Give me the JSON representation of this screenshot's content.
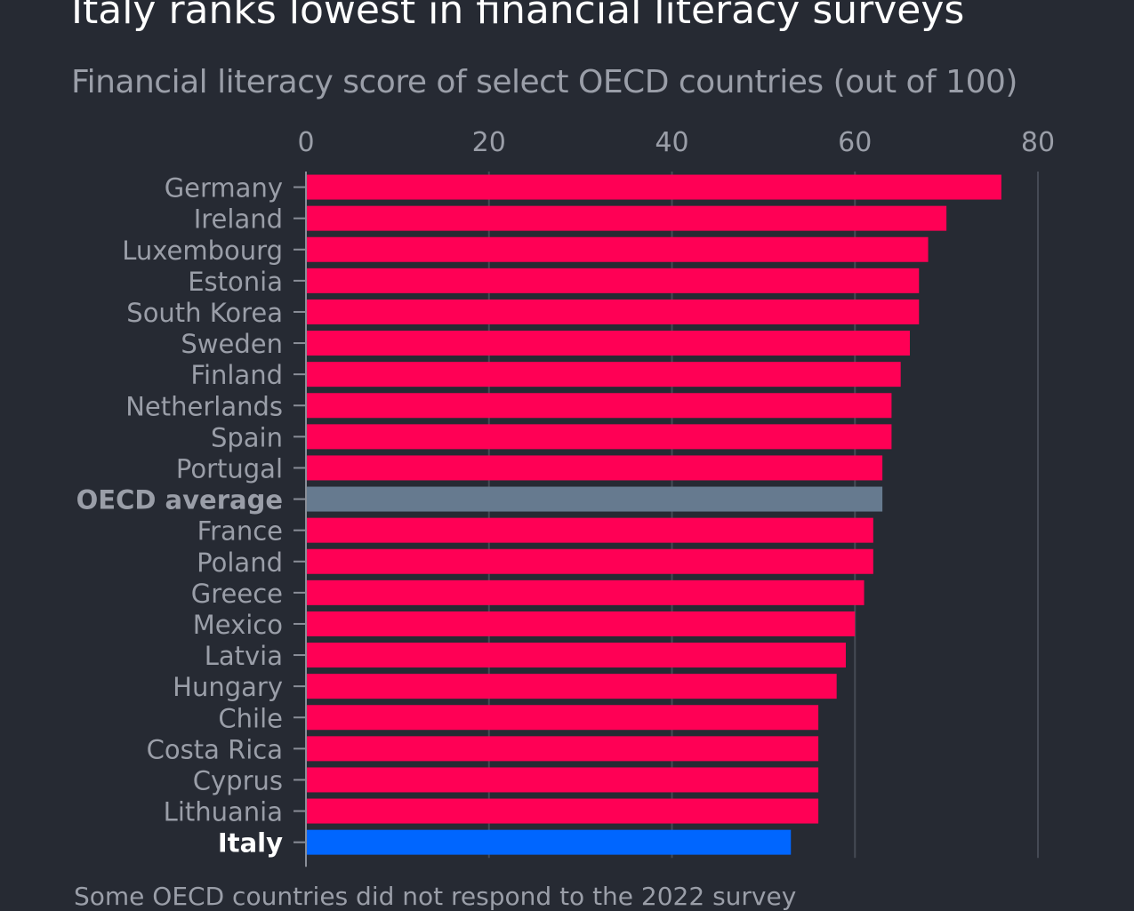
{
  "chart_data": {
    "type": "bar",
    "orientation": "horizontal",
    "title": "Italy ranks lowest in financial literacy surveys",
    "subtitle": "Financial literacy score of select OECD countries (out of 100)",
    "note": "Some OECD countries did not respond to the 2022 survey",
    "categories": [
      "Germany",
      "Ireland",
      "Luxembourg",
      "Estonia",
      "South Korea",
      "Sweden",
      "Finland",
      "Netherlands",
      "Spain",
      "Portugal",
      "OECD average",
      "France",
      "Poland",
      "Greece",
      "Mexico",
      "Latvia",
      "Hungary",
      "Chile",
      "Costa Rica",
      "Cyprus",
      "Lithuania",
      "Italy"
    ],
    "values": [
      76,
      70,
      68,
      67,
      67,
      66,
      65,
      64,
      64,
      63,
      63,
      62,
      62,
      61,
      60,
      59,
      58,
      56,
      56,
      56,
      56,
      53
    ],
    "xlim": [
      0,
      80
    ],
    "xticks": [
      "0",
      "20",
      "40",
      "60",
      "80"
    ],
    "grid": true,
    "colors": {
      "default": "#ff0055",
      "oecd_average": "#667a8f",
      "italy": "#0066ff",
      "background": "#262a33"
    },
    "highlight": {
      "OECD average": "bold",
      "Italy": "bold-white"
    }
  }
}
